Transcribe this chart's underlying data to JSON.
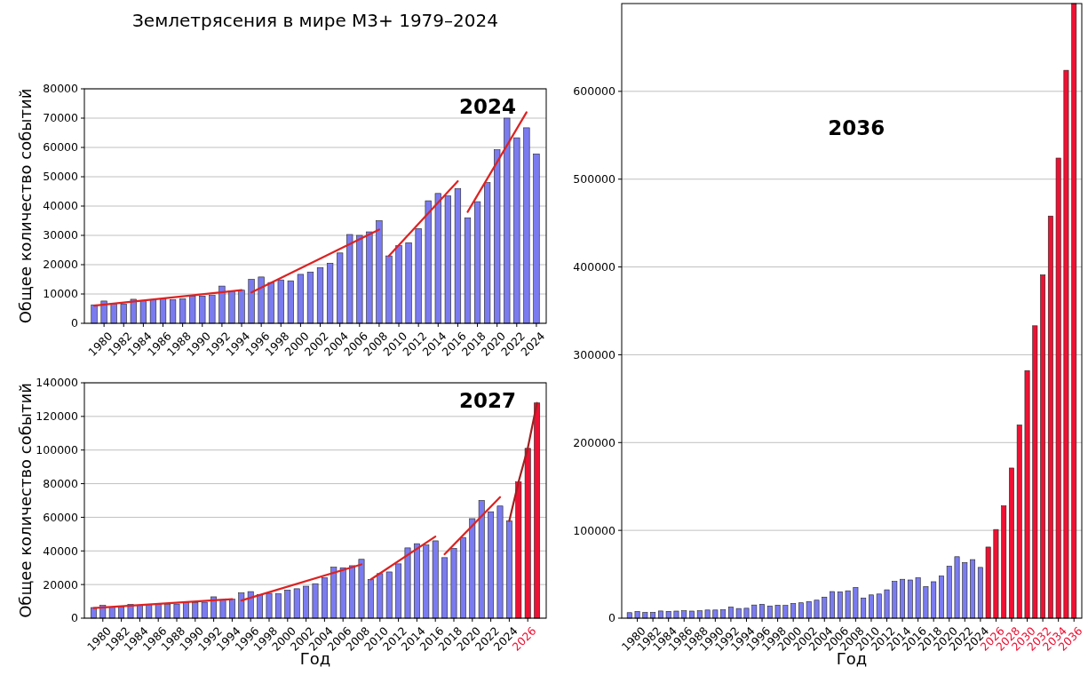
{
  "chart_data": [
    {
      "type": "bar",
      "title": "Землетрясения в мире M3+ 1979–2024",
      "ylabel": "Общее количество событий",
      "annotations": [
        "2024"
      ],
      "grid": "y",
      "xlim": [
        1978,
        2025
      ],
      "xticks": [
        1980,
        1982,
        1984,
        1986,
        1988,
        1990,
        1992,
        1994,
        1996,
        1998,
        2000,
        2002,
        2004,
        2006,
        2008,
        2010,
        2012,
        2014,
        2016,
        2018,
        2020,
        2022,
        2024
      ],
      "ylim": [
        0,
        80000
      ],
      "yticks": [
        0,
        10000,
        20000,
        30000,
        40000,
        50000,
        60000,
        70000,
        80000
      ],
      "series": [
        {
          "color": "#7b7bf0",
          "x": [
            1979,
            1980,
            1981,
            1982,
            1983,
            1984,
            1985,
            1986,
            1987,
            1988,
            1989,
            1990,
            1991,
            1992,
            1993,
            1994,
            1995,
            1996,
            1997,
            1998,
            1999,
            2000,
            2001,
            2002,
            2003,
            2004,
            2005,
            2006,
            2007,
            2008,
            2009,
            2010,
            2011,
            2012,
            2013,
            2014,
            2015,
            2016,
            2017,
            2018,
            2019,
            2020,
            2021,
            2022,
            2023,
            2024
          ],
          "values": [
            6300,
            7600,
            6500,
            6600,
            8200,
            7800,
            8100,
            8400,
            8100,
            8400,
            9300,
            9300,
            9500,
            12700,
            11000,
            11300,
            15000,
            15800,
            13900,
            14800,
            14500,
            16700,
            17500,
            19000,
            20500,
            24000,
            30300,
            30000,
            31200,
            35000,
            23000,
            26500,
            27500,
            32300,
            41800,
            44300,
            43500,
            46000,
            36000,
            41500,
            48000,
            59200,
            70000,
            63300,
            66700,
            57800
          ]
        },
        {
          "type": "line",
          "color": "#dd2222",
          "x": [
            1979,
            1994
          ],
          "values": [
            6000,
            11300
          ]
        },
        {
          "type": "line",
          "color": "#dd2222",
          "x": [
            1995,
            2008
          ],
          "values": [
            10500,
            32000
          ]
        },
        {
          "type": "line",
          "color": "#dd2222",
          "x": [
            2009,
            2016
          ],
          "values": [
            23000,
            48500
          ]
        },
        {
          "type": "line",
          "color": "#dd2222",
          "x": [
            2017,
            2023
          ],
          "values": [
            38000,
            72000
          ]
        }
      ]
    },
    {
      "type": "bar",
      "xlabel": "Год",
      "ylabel": "Общее количество событий",
      "annotations": [
        "2027"
      ],
      "grid": "y",
      "xlim": [
        1978,
        2028
      ],
      "xticks": [
        1980,
        1982,
        1984,
        1986,
        1988,
        1990,
        1992,
        1994,
        1996,
        1998,
        2000,
        2002,
        2004,
        2006,
        2008,
        2010,
        2012,
        2014,
        2016,
        2018,
        2020,
        2022,
        2024,
        2026
      ],
      "ylim": [
        0,
        140000
      ],
      "yticks": [
        0,
        20000,
        40000,
        60000,
        80000,
        100000,
        120000,
        140000
      ],
      "series": [
        {
          "color": "#7b7bf0",
          "x": [
            1979,
            1980,
            1981,
            1982,
            1983,
            1984,
            1985,
            1986,
            1987,
            1988,
            1989,
            1990,
            1991,
            1992,
            1993,
            1994,
            1995,
            1996,
            1997,
            1998,
            1999,
            2000,
            2001,
            2002,
            2003,
            2004,
            2005,
            2006,
            2007,
            2008,
            2009,
            2010,
            2011,
            2012,
            2013,
            2014,
            2015,
            2016,
            2017,
            2018,
            2019,
            2020,
            2021,
            2022,
            2023,
            2024
          ],
          "values": [
            6300,
            7600,
            6500,
            6600,
            8200,
            7800,
            8100,
            8400,
            8100,
            8400,
            9300,
            9300,
            9500,
            12700,
            11000,
            11300,
            15000,
            15800,
            13900,
            14800,
            14500,
            16700,
            17500,
            19000,
            20500,
            24000,
            30300,
            30000,
            31200,
            35000,
            23000,
            26500,
            27500,
            32300,
            41800,
            44300,
            43500,
            46000,
            36000,
            41500,
            48000,
            59200,
            70000,
            63300,
            66700,
            57800
          ]
        },
        {
          "color": "#ee1133",
          "x": [
            2025,
            2026,
            2027
          ],
          "values": [
            81000,
            101000,
            128000
          ]
        },
        {
          "type": "line",
          "color": "#dd2222",
          "x": [
            1979,
            1994
          ],
          "values": [
            6000,
            11300
          ]
        },
        {
          "type": "line",
          "color": "#dd2222",
          "x": [
            1995,
            2008
          ],
          "values": [
            10500,
            32000
          ]
        },
        {
          "type": "line",
          "color": "#dd2222",
          "x": [
            2009,
            2016
          ],
          "values": [
            23000,
            48500
          ]
        },
        {
          "type": "line",
          "color": "#dd2222",
          "x": [
            2017,
            2023
          ],
          "values": [
            38000,
            72000
          ]
        },
        {
          "type": "line",
          "color": "#a02020",
          "x": [
            2024,
            2025,
            2026,
            2027
          ],
          "values": [
            57800,
            81000,
            101000,
            128000
          ]
        }
      ]
    },
    {
      "type": "bar",
      "xlabel": "Год",
      "annotations": [
        "2036"
      ],
      "grid": "y",
      "xlim": [
        1978,
        2037
      ],
      "xticks": [
        1980,
        1982,
        1984,
        1986,
        1988,
        1990,
        1992,
        1994,
        1996,
        1998,
        2000,
        2002,
        2004,
        2006,
        2008,
        2010,
        2012,
        2014,
        2016,
        2018,
        2020,
        2022,
        2024,
        2026,
        2028,
        2030,
        2032,
        2034,
        2036
      ],
      "ylim": [
        0,
        700000
      ],
      "yticks": [
        0,
        100000,
        200000,
        300000,
        400000,
        500000,
        600000
      ],
      "series": [
        {
          "color": "#7b7bf0",
          "x": [
            1979,
            1980,
            1981,
            1982,
            1983,
            1984,
            1985,
            1986,
            1987,
            1988,
            1989,
            1990,
            1991,
            1992,
            1993,
            1994,
            1995,
            1996,
            1997,
            1998,
            1999,
            2000,
            2001,
            2002,
            2003,
            2004,
            2005,
            2006,
            2007,
            2008,
            2009,
            2010,
            2011,
            2012,
            2013,
            2014,
            2015,
            2016,
            2017,
            2018,
            2019,
            2020,
            2021,
            2022,
            2023,
            2024
          ],
          "values": [
            6300,
            7600,
            6500,
            6600,
            8200,
            7800,
            8100,
            8400,
            8100,
            8400,
            9300,
            9300,
            9500,
            12700,
            11000,
            11300,
            15000,
            15800,
            13900,
            14800,
            14500,
            16700,
            17500,
            19000,
            20500,
            24000,
            30300,
            30000,
            31200,
            35000,
            23000,
            26500,
            27500,
            32300,
            41800,
            44300,
            43500,
            46000,
            36000,
            41500,
            48000,
            59200,
            70000,
            63300,
            66700,
            57800
          ]
        },
        {
          "color": "#ee1133",
          "x": [
            2025,
            2026,
            2027,
            2028,
            2029,
            2030,
            2031,
            2032,
            2033,
            2034,
            2035,
            2036
          ],
          "values": [
            81000,
            101000,
            128000,
            171000,
            220000,
            282000,
            333000,
            391000,
            458000,
            524000,
            624000,
            700000
          ]
        }
      ]
    }
  ]
}
